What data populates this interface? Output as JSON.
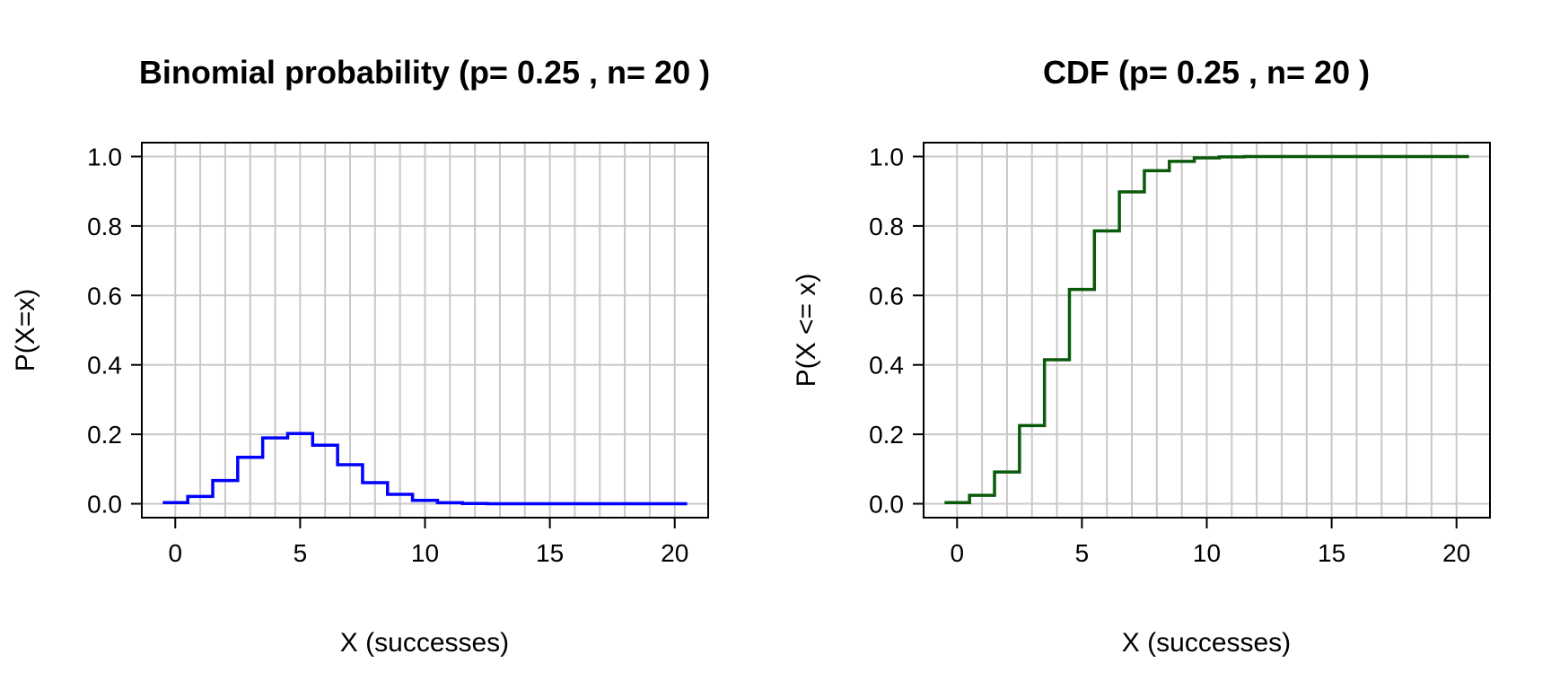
{
  "chart_data": [
    {
      "type": "line",
      "step": "mid",
      "title": "Binomial probability (p= 0.25 , n= 20 )",
      "xlabel": "X (successes)",
      "ylabel": "P(X=x)",
      "xlim": [
        -0.5,
        20.5
      ],
      "ylim": [
        0,
        1
      ],
      "xticks": [
        0,
        5,
        10,
        15,
        20
      ],
      "yticks": [
        "0.0",
        "0.2",
        "0.4",
        "0.6",
        "0.8",
        "1.0"
      ],
      "grid": true,
      "line_color": "#0000ff",
      "x": [
        0,
        1,
        2,
        3,
        4,
        5,
        6,
        7,
        8,
        9,
        10,
        11,
        12,
        13,
        14,
        15,
        16,
        17,
        18,
        19,
        20
      ],
      "y": [
        0.0032,
        0.0211,
        0.0669,
        0.1339,
        0.1897,
        0.2023,
        0.1686,
        0.1124,
        0.0609,
        0.0271,
        0.0099,
        0.003,
        0.0008,
        0.0002,
        0.0,
        0.0,
        0.0,
        0.0,
        0.0,
        0.0,
        0.0
      ]
    },
    {
      "type": "line",
      "step": "mid",
      "title": "CDF (p= 0.25 , n= 20 )",
      "xlabel": "X (successes)",
      "ylabel": "P(X <= x)",
      "xlim": [
        -0.5,
        20.5
      ],
      "ylim": [
        0,
        1
      ],
      "xticks": [
        0,
        5,
        10,
        15,
        20
      ],
      "yticks": [
        "0.0",
        "0.2",
        "0.4",
        "0.6",
        "0.8",
        "1.0"
      ],
      "grid": true,
      "line_color": "#0b5a0b",
      "x": [
        0,
        1,
        2,
        3,
        4,
        5,
        6,
        7,
        8,
        9,
        10,
        11,
        12,
        13,
        14,
        15,
        16,
        17,
        18,
        19,
        20
      ],
      "y": [
        0.0032,
        0.0243,
        0.0913,
        0.2252,
        0.4148,
        0.6172,
        0.7858,
        0.8982,
        0.9591,
        0.9861,
        0.9961,
        0.9991,
        0.9998,
        1.0,
        1.0,
        1.0,
        1.0,
        1.0,
        1.0,
        1.0,
        1.0
      ]
    }
  ]
}
